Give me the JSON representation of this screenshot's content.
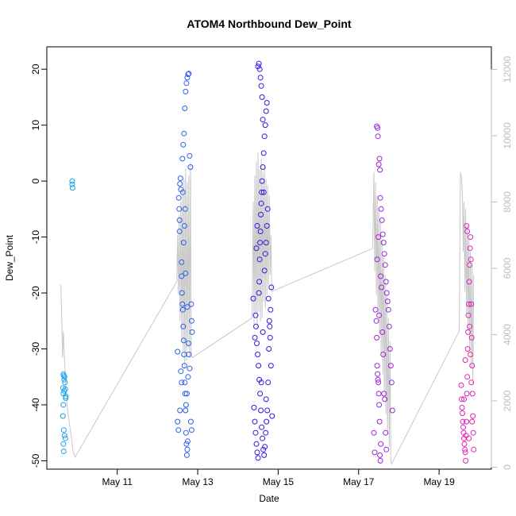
{
  "chart_data": {
    "type": "scatter",
    "title": "ATOM4 Northbound Dew_Point",
    "xlabel": "Date",
    "ylabel": "Dew_Point",
    "x_ticks": [
      "May 11",
      "May 13",
      "May 15",
      "May 17",
      "May 19"
    ],
    "x_tick_days": [
      11,
      13,
      15,
      17,
      19
    ],
    "xlim": [
      9.25,
      20.3
    ],
    "ylim": [
      -51.5,
      24
    ],
    "y_ticks": [
      -50,
      -40,
      -30,
      -20,
      -10,
      0,
      10,
      20
    ],
    "y2lim": [
      -60,
      12680
    ],
    "y2_ticks": [
      0,
      2000,
      4000,
      6000,
      8000,
      10000,
      12000
    ],
    "grid": false,
    "point_colors": {
      "may09": "#1ea3e8",
      "may12": "#2a62e8",
      "may14": "#3b14e0",
      "may17": "#9d25d6",
      "may19": "#e024b6"
    },
    "line_color": "#c8c8c8",
    "series": [
      {
        "day": "may09",
        "points": [
          [
            9.66,
            -34.5
          ],
          [
            9.67,
            -34.8
          ],
          [
            9.68,
            -35.5
          ],
          [
            9.65,
            -37
          ],
          [
            9.66,
            -38
          ],
          [
            9.68,
            -37.5
          ],
          [
            9.7,
            -36
          ],
          [
            9.71,
            -37.2
          ],
          [
            9.72,
            -38.5
          ],
          [
            9.66,
            -40
          ],
          [
            9.65,
            -42
          ],
          [
            9.67,
            -44.5
          ],
          [
            9.69,
            -45.5
          ],
          [
            9.71,
            -46
          ],
          [
            9.66,
            -47
          ],
          [
            9.67,
            -48.3
          ],
          [
            9.69,
            -35
          ],
          [
            9.72,
            -38.8
          ],
          [
            9.88,
            0
          ],
          [
            9.88,
            -0.6
          ],
          [
            9.89,
            -1.2
          ]
        ]
      },
      {
        "day": "may12",
        "points": [
          [
            12.5,
            -30.5
          ],
          [
            12.5,
            -43
          ],
          [
            12.52,
            -44.5
          ],
          [
            12.53,
            -3
          ],
          [
            12.54,
            -5
          ],
          [
            12.55,
            -7
          ],
          [
            12.55,
            -9
          ],
          [
            12.56,
            -0.5
          ],
          [
            12.57,
            0.5
          ],
          [
            12.58,
            -1.5
          ],
          [
            12.6,
            -14.5
          ],
          [
            12.6,
            -17
          ],
          [
            12.61,
            -20
          ],
          [
            12.62,
            -22
          ],
          [
            12.63,
            -23
          ],
          [
            12.64,
            -26
          ],
          [
            12.65,
            -28.5
          ],
          [
            12.66,
            -31
          ],
          [
            12.67,
            -33
          ],
          [
            12.68,
            -36
          ],
          [
            12.69,
            -38
          ],
          [
            12.7,
            -41
          ],
          [
            12.71,
            -45
          ],
          [
            12.72,
            -47
          ],
          [
            12.73,
            -49
          ],
          [
            12.74,
            -48
          ],
          [
            12.75,
            -46.5
          ],
          [
            12.62,
            4
          ],
          [
            12.64,
            6.5
          ],
          [
            12.66,
            8.5
          ],
          [
            12.68,
            13
          ],
          [
            12.7,
            16
          ],
          [
            12.72,
            17.5
          ],
          [
            12.74,
            18.5
          ],
          [
            12.76,
            19.1
          ],
          [
            12.78,
            19.2
          ],
          [
            12.8,
            4.5
          ],
          [
            12.82,
            2.5
          ],
          [
            12.84,
            -22
          ],
          [
            12.85,
            -25
          ],
          [
            12.86,
            -27
          ],
          [
            12.83,
            -43
          ],
          [
            12.85,
            -44.5
          ],
          [
            12.78,
            -31
          ],
          [
            12.8,
            -33.5
          ],
          [
            12.73,
            -38
          ],
          [
            12.71,
            -40
          ],
          [
            12.76,
            -35
          ],
          [
            12.77,
            -29
          ],
          [
            12.65,
            -11
          ],
          [
            12.67,
            -8
          ],
          [
            12.69,
            -5
          ],
          [
            12.6,
            -36
          ],
          [
            12.58,
            -34
          ],
          [
            12.56,
            -41
          ],
          [
            12.74,
            -22.5
          ],
          [
            12.63,
            -2
          ],
          [
            12.7,
            -16.5
          ]
        ]
      },
      {
        "day": "may14",
        "points": [
          [
            14.38,
            -21
          ],
          [
            14.4,
            -40.5
          ],
          [
            14.42,
            -43
          ],
          [
            14.44,
            -45
          ],
          [
            14.46,
            -47
          ],
          [
            14.48,
            -48.5
          ],
          [
            14.5,
            -49.5
          ],
          [
            14.52,
            -20
          ],
          [
            14.53,
            -18
          ],
          [
            14.54,
            -14
          ],
          [
            14.55,
            -11
          ],
          [
            14.56,
            -9
          ],
          [
            14.57,
            -6
          ],
          [
            14.58,
            -4
          ],
          [
            14.59,
            -2
          ],
          [
            14.6,
            0
          ],
          [
            14.62,
            2.5
          ],
          [
            14.64,
            5
          ],
          [
            14.66,
            8
          ],
          [
            14.68,
            10
          ],
          [
            14.7,
            12.5
          ],
          [
            14.72,
            14
          ],
          [
            14.5,
            20.5
          ],
          [
            14.52,
            21
          ],
          [
            14.54,
            20
          ],
          [
            14.56,
            18.5
          ],
          [
            14.58,
            17
          ],
          [
            14.6,
            15
          ],
          [
            14.62,
            11
          ],
          [
            14.45,
            -26
          ],
          [
            14.47,
            -29
          ],
          [
            14.49,
            -31
          ],
          [
            14.51,
            -33
          ],
          [
            14.53,
            -35.5
          ],
          [
            14.55,
            -38
          ],
          [
            14.57,
            -41
          ],
          [
            14.59,
            -44
          ],
          [
            14.61,
            -46
          ],
          [
            14.63,
            -48
          ],
          [
            14.65,
            -49
          ],
          [
            14.67,
            -47.5
          ],
          [
            14.69,
            -45
          ],
          [
            14.71,
            -43
          ],
          [
            14.73,
            -41
          ],
          [
            14.75,
            -36
          ],
          [
            14.77,
            -30
          ],
          [
            14.79,
            -26
          ],
          [
            14.81,
            -23
          ],
          [
            14.83,
            -19
          ],
          [
            14.85,
            -42
          ],
          [
            14.66,
            -16
          ],
          [
            14.68,
            -13
          ],
          [
            14.7,
            -11
          ],
          [
            14.72,
            -8
          ],
          [
            14.74,
            -5
          ],
          [
            14.64,
            -2
          ],
          [
            14.48,
            -8
          ],
          [
            14.46,
            -12
          ],
          [
            14.44,
            -24
          ],
          [
            14.42,
            -28
          ],
          [
            14.76,
            -21
          ],
          [
            14.78,
            -25
          ],
          [
            14.8,
            -28
          ],
          [
            14.82,
            -33
          ],
          [
            14.7,
            -39
          ],
          [
            14.62,
            -27
          ],
          [
            14.58,
            -36
          ]
        ]
      },
      {
        "day": "may17",
        "points": [
          [
            17.38,
            -45
          ],
          [
            17.4,
            -48.5
          ],
          [
            17.42,
            -23
          ],
          [
            17.44,
            -25
          ],
          [
            17.45,
            -28
          ],
          [
            17.46,
            -33
          ],
          [
            17.47,
            -34.5
          ],
          [
            17.48,
            -35.5
          ],
          [
            17.49,
            -36
          ],
          [
            17.5,
            -38
          ],
          [
            17.51,
            -40
          ],
          [
            17.52,
            -43
          ],
          [
            17.53,
            -49
          ],
          [
            17.54,
            -50
          ],
          [
            17.55,
            -47
          ],
          [
            17.45,
            9.8
          ],
          [
            17.47,
            9.5
          ],
          [
            17.48,
            8
          ],
          [
            17.5,
            3
          ],
          [
            17.52,
            4
          ],
          [
            17.53,
            2
          ],
          [
            17.54,
            -3
          ],
          [
            17.56,
            -5
          ],
          [
            17.58,
            -7
          ],
          [
            17.6,
            -9.5
          ],
          [
            17.62,
            -11
          ],
          [
            17.64,
            -13
          ],
          [
            17.66,
            -15
          ],
          [
            17.68,
            -18
          ],
          [
            17.7,
            -20
          ],
          [
            17.72,
            -21.5
          ],
          [
            17.74,
            -23
          ],
          [
            17.76,
            -26
          ],
          [
            17.78,
            -30
          ],
          [
            17.8,
            -33
          ],
          [
            17.82,
            -36
          ],
          [
            17.84,
            -41
          ],
          [
            17.55,
            -17
          ],
          [
            17.57,
            -19
          ],
          [
            17.59,
            -27
          ],
          [
            17.61,
            -31
          ],
          [
            17.63,
            -38
          ],
          [
            17.65,
            -39
          ],
          [
            17.67,
            -45
          ],
          [
            17.69,
            -48
          ],
          [
            17.51,
            -24
          ],
          [
            17.46,
            -14
          ],
          [
            17.49,
            -10
          ]
        ]
      },
      {
        "day": "may19",
        "points": [
          [
            19.55,
            -36.5
          ],
          [
            19.56,
            -39
          ],
          [
            19.57,
            -40.5
          ],
          [
            19.58,
            -41.5
          ],
          [
            19.59,
            -43
          ],
          [
            19.6,
            -44
          ],
          [
            19.61,
            -45
          ],
          [
            19.62,
            -46
          ],
          [
            19.63,
            -47
          ],
          [
            19.64,
            -48
          ],
          [
            19.65,
            -48.5
          ],
          [
            19.66,
            -50
          ],
          [
            19.67,
            -45.5
          ],
          [
            19.68,
            -43
          ],
          [
            19.69,
            -38
          ],
          [
            19.7,
            -35
          ],
          [
            19.71,
            -30
          ],
          [
            19.72,
            -27
          ],
          [
            19.73,
            -24
          ],
          [
            19.74,
            -22
          ],
          [
            19.75,
            -18
          ],
          [
            19.76,
            -15
          ],
          [
            19.77,
            -12
          ],
          [
            19.78,
            -10
          ],
          [
            19.79,
            -14
          ],
          [
            19.8,
            -22
          ],
          [
            19.81,
            -28
          ],
          [
            19.82,
            -33
          ],
          [
            19.83,
            -38
          ],
          [
            19.84,
            -42
          ],
          [
            19.85,
            -45
          ],
          [
            19.86,
            -48
          ],
          [
            19.68,
            -8
          ],
          [
            19.7,
            -9
          ],
          [
            19.76,
            -26
          ],
          [
            19.78,
            -31
          ],
          [
            19.8,
            -36
          ],
          [
            19.65,
            -32
          ],
          [
            19.62,
            -39
          ],
          [
            19.74,
            -46
          ],
          [
            19.82,
            -43
          ]
        ]
      }
    ],
    "secondary_line": [
      [
        9.6,
        5500
      ],
      [
        9.62,
        4500
      ],
      [
        9.64,
        3300
      ],
      [
        9.66,
        4100
      ],
      [
        9.68,
        3500
      ],
      [
        9.7,
        3000
      ],
      [
        9.72,
        2500
      ],
      [
        9.74,
        2200
      ],
      [
        9.76,
        1800
      ],
      [
        9.8,
        1400
      ],
      [
        9.85,
        1000
      ],
      [
        9.9,
        500
      ],
      [
        9.95,
        300
      ],
      [
        12.48,
        5600
      ],
      [
        12.5,
        7000
      ],
      [
        12.52,
        5200
      ],
      [
        12.54,
        7600
      ],
      [
        12.56,
        4400
      ],
      [
        12.58,
        8000
      ],
      [
        12.6,
        3900
      ],
      [
        12.62,
        8300
      ],
      [
        12.64,
        3500
      ],
      [
        12.66,
        8700
      ],
      [
        12.68,
        3000
      ],
      [
        12.7,
        9000
      ],
      [
        12.72,
        3200
      ],
      [
        12.74,
        8600
      ],
      [
        12.76,
        3600
      ],
      [
        12.78,
        8800
      ],
      [
        12.8,
        3300
      ],
      [
        12.82,
        9200
      ],
      [
        12.84,
        3400
      ],
      [
        12.86,
        3300
      ],
      [
        14.35,
        4500
      ],
      [
        14.38,
        8000
      ],
      [
        14.4,
        4300
      ],
      [
        14.42,
        8800
      ],
      [
        14.44,
        4600
      ],
      [
        14.46,
        9200
      ],
      [
        14.48,
        4200
      ],
      [
        14.5,
        9500
      ],
      [
        14.52,
        4700
      ],
      [
        14.54,
        9000
      ],
      [
        14.56,
        4400
      ],
      [
        14.58,
        9300
      ],
      [
        14.6,
        4500
      ],
      [
        14.62,
        8900
      ],
      [
        14.64,
        5000
      ],
      [
        14.66,
        9100
      ],
      [
        14.68,
        4800
      ],
      [
        14.7,
        8700
      ],
      [
        14.72,
        5200
      ],
      [
        14.74,
        8500
      ],
      [
        14.76,
        5500
      ],
      [
        14.78,
        8200
      ],
      [
        14.8,
        5800
      ],
      [
        14.82,
        7000
      ],
      [
        14.84,
        5300
      ],
      [
        17.35,
        6600
      ],
      [
        17.38,
        8900
      ],
      [
        17.4,
        5900
      ],
      [
        17.42,
        8600
      ],
      [
        17.44,
        5200
      ],
      [
        17.46,
        8200
      ],
      [
        17.48,
        4600
      ],
      [
        17.5,
        7800
      ],
      [
        17.52,
        4000
      ],
      [
        17.54,
        7400
      ],
      [
        17.56,
        3400
      ],
      [
        17.58,
        6900
      ],
      [
        17.6,
        2800
      ],
      [
        17.62,
        6400
      ],
      [
        17.64,
        2200
      ],
      [
        17.66,
        5800
      ],
      [
        17.68,
        1600
      ],
      [
        17.7,
        5200
      ],
      [
        17.72,
        1000
      ],
      [
        17.74,
        4500
      ],
      [
        17.76,
        600
      ],
      [
        17.78,
        3800
      ],
      [
        17.8,
        200
      ],
      [
        17.82,
        100
      ],
      [
        19.5,
        4100
      ],
      [
        19.53,
        8900
      ],
      [
        19.56,
        8700
      ],
      [
        19.58,
        8200
      ],
      [
        19.6,
        6500
      ],
      [
        19.62,
        8000
      ],
      [
        19.64,
        5300
      ],
      [
        19.66,
        7800
      ],
      [
        19.68,
        4600
      ],
      [
        19.7,
        7300
      ],
      [
        19.72,
        4100
      ],
      [
        19.74,
        6900
      ],
      [
        19.76,
        3500
      ],
      [
        19.78,
        6500
      ],
      [
        19.8,
        3000
      ],
      [
        19.82,
        6100
      ],
      [
        19.84,
        2500
      ],
      [
        19.86,
        5800
      ]
    ]
  }
}
